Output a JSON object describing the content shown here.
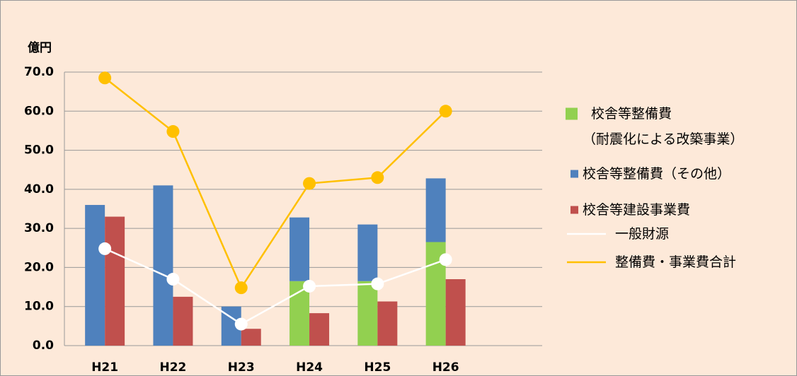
{
  "chart_data": {
    "type": "bar-line",
    "ylabel": "億円",
    "categories": [
      "H21",
      "H22",
      "H23",
      "H24",
      "H25",
      "H26"
    ],
    "ylim": [
      0,
      70
    ],
    "yticks": [
      {
        "value": 0,
        "label": "0.0"
      },
      {
        "value": 10,
        "label": "10.0"
      },
      {
        "value": 20,
        "label": "20.0"
      },
      {
        "value": 30,
        "label": "30.0"
      },
      {
        "value": 40,
        "label": "40.0"
      },
      {
        "value": 50,
        "label": "50.0"
      },
      {
        "value": 60,
        "label": "60.0"
      },
      {
        "value": 70,
        "label": "70.0"
      }
    ],
    "grid": true,
    "legend": "right",
    "series": [
      {
        "name": "校舎等整備費\n（耐震化による改築事業）",
        "kind": "bar",
        "stack": "a",
        "color": "#92d050",
        "values": [
          null,
          null,
          null,
          16.5,
          16.5,
          26.5
        ]
      },
      {
        "name": "校舎等整備費（その他）",
        "kind": "bar",
        "stack": "a",
        "color": "#4f81bd",
        "values": [
          36,
          41,
          10,
          16.3,
          14.5,
          16.3
        ]
      },
      {
        "name": "校舎等建設事業費",
        "kind": "bar",
        "stack": "b",
        "color": "#c0504d",
        "values": [
          33,
          12.5,
          4.3,
          8.3,
          11.3,
          17
        ]
      },
      {
        "name": "一般財源",
        "kind": "line",
        "color": "#ffffff",
        "values": [
          24.8,
          17,
          5.5,
          15.2,
          15.8,
          22
        ]
      },
      {
        "name": "整備費・事業費合計",
        "kind": "line",
        "color": "#ffc000",
        "values": [
          68.5,
          54.8,
          14.8,
          41.5,
          43,
          60
        ]
      }
    ]
  }
}
